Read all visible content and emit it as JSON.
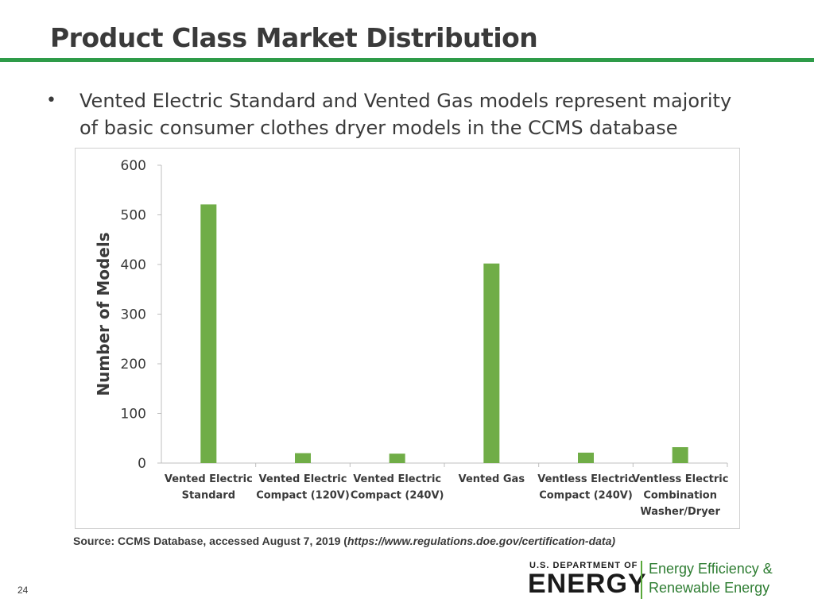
{
  "slide": {
    "title": "Product Class Market Distribution",
    "bullet_symbol": "•",
    "bullet_text": "Vented Electric Standard and Vented Gas models represent majority of basic consumer clothes dryer models in the CCMS database",
    "source_prefix": "Source: CCMS Database, accessed August 7, 2019 (",
    "source_url": "https://www.regulations.doe.gov/certification-data)",
    "page_number": "24"
  },
  "logo": {
    "department": "U.S. DEPARTMENT OF",
    "energy": "ENERGY",
    "eere_line1": "Energy Efficiency &",
    "eere_line2": "Renewable Energy"
  },
  "colors": {
    "bar": "#70ad47",
    "rule": "#2e9b48",
    "axis": "#bfbfbf",
    "text": "#3a3a3a"
  },
  "chart_data": {
    "type": "bar",
    "categories": [
      [
        "Vented Electric",
        "Standard"
      ],
      [
        "Vented Electric",
        "Compact (120V)"
      ],
      [
        "Vented Electric",
        "Compact (240V)"
      ],
      [
        "Vented Gas"
      ],
      [
        "Ventless Electric",
        "Compact (240V)"
      ],
      [
        "Ventless Electric",
        "Combination",
        "Washer/Dryer"
      ]
    ],
    "values": [
      521,
      20,
      19,
      402,
      21,
      32
    ],
    "ylabel": "Number of Models",
    "xlabel": "",
    "ylim": [
      0,
      600
    ],
    "yticks": [
      "0",
      "100",
      "200",
      "300",
      "400",
      "500",
      "600"
    ],
    "grid": false,
    "legend": "none"
  }
}
